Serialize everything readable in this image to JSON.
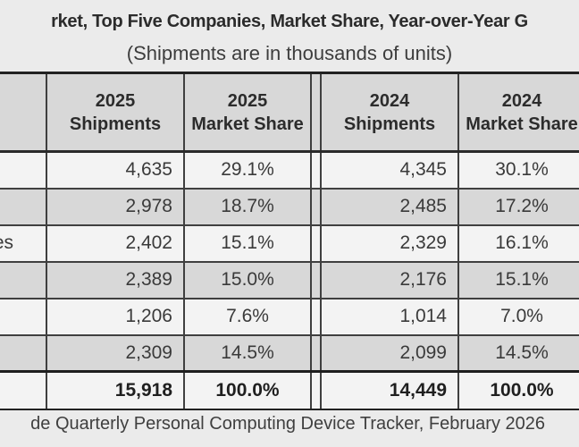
{
  "title": "rket, Top Five Companies, Market Share, Year-over-Year G",
  "subtitle": "(Shipments are in thousands of units)",
  "footer": "de Quarterly Personal Computing Device Tracker, February 2026",
  "colors": {
    "page_bg": "#ebebeb",
    "header_bg": "#d8d8d8",
    "row_light": "#f3f3f3",
    "row_dark": "#d8d8d8",
    "border": "#3f3f3f",
    "border_strong": "#1e1e1e",
    "title_text": "#2b2b2b",
    "body_text": "#3a3a3a"
  },
  "table": {
    "headers": {
      "company": "",
      "ship2025": {
        "year": "2025",
        "label": "Shipments"
      },
      "share2025": {
        "year": "2025",
        "label": "Market Share"
      },
      "ship2024": {
        "year": "2024",
        "label": "Shipments"
      },
      "share2024": {
        "year": "2024",
        "label": "Market Share"
      }
    },
    "rows": [
      {
        "company": "",
        "ship_2025": "4,635",
        "share_2025": "29.1%",
        "ship_2024": "4,345",
        "share_2024": "30.1%"
      },
      {
        "company": "",
        "ship_2025": "2,978",
        "share_2025": "18.7%",
        "ship_2024": "2,485",
        "share_2024": "17.2%"
      },
      {
        "company": "es",
        "ship_2025": "2,402",
        "share_2025": "15.1%",
        "ship_2024": "2,329",
        "share_2024": "16.1%"
      },
      {
        "company": "",
        "ship_2025": "2,389",
        "share_2025": "15.0%",
        "ship_2024": "2,176",
        "share_2024": "15.1%"
      },
      {
        "company": "",
        "ship_2025": "1,206",
        "share_2025": "7.6%",
        "ship_2024": "1,014",
        "share_2024": "7.0%"
      },
      {
        "company": "",
        "ship_2025": "2,309",
        "share_2025": "14.5%",
        "ship_2024": "2,099",
        "share_2024": "14.5%"
      }
    ],
    "total": {
      "company": "",
      "ship_2025": "15,918",
      "share_2025": "100.0%",
      "ship_2024": "14,449",
      "share_2024": "100.0%"
    }
  },
  "chart_data": {
    "type": "table",
    "title": "rket, Top Five Companies, Market Share, Year-over-Year G",
    "subtitle": "(Shipments are in thousands of units)",
    "units": "thousands of units",
    "columns": [
      "2025 Shipments",
      "2025 Market Share",
      "2024 Shipments",
      "2024 Market Share"
    ],
    "rows": [
      {
        "company_visible": "",
        "ship_2025": 4635,
        "share_2025_pct": 29.1,
        "ship_2024": 4345,
        "share_2024_pct": 30.1
      },
      {
        "company_visible": "",
        "ship_2025": 2978,
        "share_2025_pct": 18.7,
        "ship_2024": 2485,
        "share_2024_pct": 17.2
      },
      {
        "company_visible": "es",
        "ship_2025": 2402,
        "share_2025_pct": 15.1,
        "ship_2024": 2329,
        "share_2024_pct": 16.1
      },
      {
        "company_visible": "",
        "ship_2025": 2389,
        "share_2025_pct": 15.0,
        "ship_2024": 2176,
        "share_2024_pct": 15.1
      },
      {
        "company_visible": "",
        "ship_2025": 1206,
        "share_2025_pct": 7.6,
        "ship_2024": 1014,
        "share_2024_pct": 7.0
      },
      {
        "company_visible": "",
        "ship_2025": 2309,
        "share_2025_pct": 14.5,
        "ship_2024": 2099,
        "share_2024_pct": 14.5
      }
    ],
    "total": {
      "ship_2025": 15918,
      "share_2025_pct": 100.0,
      "ship_2024": 14449,
      "share_2024_pct": 100.0
    },
    "source_visible": "de Quarterly Personal Computing Device Tracker, February 2026"
  }
}
